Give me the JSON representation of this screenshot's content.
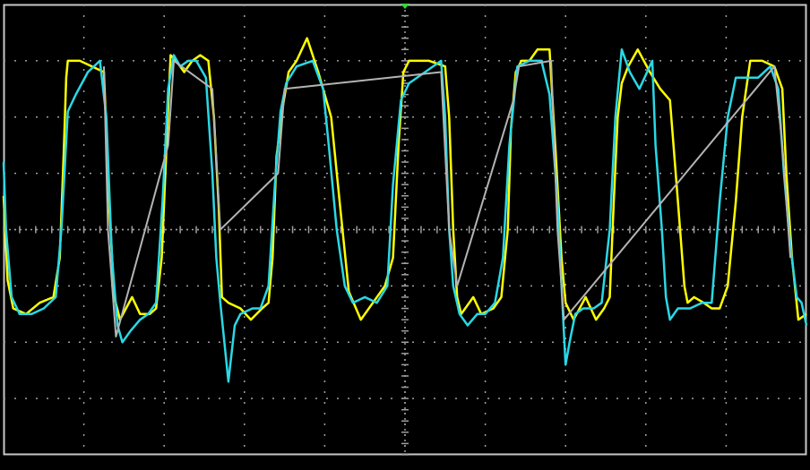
{
  "chart_data": {
    "type": "line",
    "title": "",
    "xlabel": "",
    "ylabel": "",
    "xlim": [
      0,
      10
    ],
    "ylim": [
      -4,
      4
    ],
    "grid": true,
    "grid_divisions": {
      "x": 10,
      "y": 8
    },
    "trigger_marker_x": 5,
    "colors": {
      "background": "#000000",
      "frame": "#c8c8c8",
      "grid": "#a0a0a0",
      "trigger": "#3ad63a"
    },
    "series": [
      {
        "color": "#ffff00",
        "points": [
          [
            0.0,
            0.6
          ],
          [
            0.05,
            -0.9
          ],
          [
            0.12,
            -1.4
          ],
          [
            0.28,
            -1.5
          ],
          [
            0.45,
            -1.3
          ],
          [
            0.62,
            -1.2
          ],
          [
            0.7,
            -0.5
          ],
          [
            0.75,
            1.4
          ],
          [
            0.78,
            2.7
          ],
          [
            0.8,
            3.0
          ],
          [
            0.95,
            3.0
          ],
          [
            1.25,
            2.8
          ],
          [
            1.32,
            0.3
          ],
          [
            1.38,
            -1.2
          ],
          [
            1.45,
            -1.6
          ],
          [
            1.6,
            -1.2
          ],
          [
            1.7,
            -1.5
          ],
          [
            1.82,
            -1.5
          ],
          [
            1.9,
            -1.4
          ],
          [
            1.97,
            -0.5
          ],
          [
            2.03,
            1.5
          ],
          [
            2.08,
            3.1
          ],
          [
            2.15,
            3.0
          ],
          [
            2.25,
            2.8
          ],
          [
            2.35,
            3.0
          ],
          [
            2.45,
            3.1
          ],
          [
            2.55,
            3.0
          ],
          [
            2.62,
            2.0
          ],
          [
            2.68,
            0.4
          ],
          [
            2.72,
            -1.2
          ],
          [
            2.8,
            -1.3
          ],
          [
            2.95,
            -1.4
          ],
          [
            3.08,
            -1.6
          ],
          [
            3.22,
            -1.4
          ],
          [
            3.3,
            -1.3
          ],
          [
            3.35,
            -0.5
          ],
          [
            3.4,
            1.3
          ],
          [
            3.48,
            2.2
          ],
          [
            3.55,
            2.8
          ],
          [
            3.65,
            3.0
          ],
          [
            3.78,
            3.4
          ],
          [
            3.92,
            2.8
          ],
          [
            4.08,
            2.0
          ],
          [
            4.2,
            0.3
          ],
          [
            4.3,
            -1.1
          ],
          [
            4.45,
            -1.6
          ],
          [
            4.6,
            -1.3
          ],
          [
            4.75,
            -1.0
          ],
          [
            4.85,
            -0.5
          ],
          [
            4.92,
            1.5
          ],
          [
            4.98,
            2.8
          ],
          [
            5.05,
            3.0
          ],
          [
            5.3,
            3.0
          ],
          [
            5.5,
            2.9
          ],
          [
            5.55,
            2.0
          ],
          [
            5.6,
            0.0
          ],
          [
            5.65,
            -1.2
          ],
          [
            5.7,
            -1.5
          ],
          [
            5.85,
            -1.2
          ],
          [
            5.95,
            -1.5
          ],
          [
            6.1,
            -1.4
          ],
          [
            6.2,
            -1.2
          ],
          [
            6.28,
            0.0
          ],
          [
            6.32,
            1.8
          ],
          [
            6.38,
            2.8
          ],
          [
            6.45,
            3.0
          ],
          [
            6.55,
            3.0
          ],
          [
            6.65,
            3.2
          ],
          [
            6.8,
            3.2
          ],
          [
            6.88,
            1.3
          ],
          [
            6.95,
            -0.5
          ],
          [
            7.0,
            -1.3
          ],
          [
            7.1,
            -1.6
          ],
          [
            7.25,
            -1.2
          ],
          [
            7.38,
            -1.6
          ],
          [
            7.48,
            -1.4
          ],
          [
            7.55,
            -1.2
          ],
          [
            7.6,
            0.5
          ],
          [
            7.65,
            2.0
          ],
          [
            7.7,
            2.6
          ],
          [
            7.78,
            2.9
          ],
          [
            7.9,
            3.2
          ],
          [
            8.05,
            2.8
          ],
          [
            8.18,
            2.5
          ],
          [
            8.3,
            2.3
          ],
          [
            8.4,
            0.5
          ],
          [
            8.48,
            -1.0
          ],
          [
            8.52,
            -1.3
          ],
          [
            8.6,
            -1.2
          ],
          [
            8.72,
            -1.3
          ],
          [
            8.82,
            -1.4
          ],
          [
            8.92,
            -1.4
          ],
          [
            9.02,
            -1.0
          ],
          [
            9.12,
            0.5
          ],
          [
            9.2,
            2.0
          ],
          [
            9.3,
            3.0
          ],
          [
            9.45,
            3.0
          ],
          [
            9.6,
            2.9
          ],
          [
            9.7,
            2.5
          ],
          [
            9.75,
            1.0
          ],
          [
            9.82,
            -0.5
          ],
          [
            9.9,
            -1.6
          ],
          [
            10.0,
            -1.5
          ]
        ]
      },
      {
        "color": "#2ad8e6",
        "points": [
          [
            0.0,
            1.2
          ],
          [
            0.03,
            0.0
          ],
          [
            0.1,
            -1.2
          ],
          [
            0.2,
            -1.5
          ],
          [
            0.35,
            -1.5
          ],
          [
            0.5,
            -1.4
          ],
          [
            0.65,
            -1.2
          ],
          [
            0.72,
            0.0
          ],
          [
            0.8,
            2.1
          ],
          [
            0.9,
            2.4
          ],
          [
            1.05,
            2.8
          ],
          [
            1.2,
            3.0
          ],
          [
            1.28,
            2.0
          ],
          [
            1.35,
            -0.5
          ],
          [
            1.42,
            -1.7
          ],
          [
            1.48,
            -2.0
          ],
          [
            1.58,
            -1.8
          ],
          [
            1.7,
            -1.6
          ],
          [
            1.8,
            -1.5
          ],
          [
            1.9,
            -1.3
          ],
          [
            1.98,
            0.5
          ],
          [
            2.05,
            2.5
          ],
          [
            2.12,
            3.1
          ],
          [
            2.2,
            2.9
          ],
          [
            2.3,
            3.0
          ],
          [
            2.4,
            3.0
          ],
          [
            2.52,
            2.7
          ],
          [
            2.6,
            1.0
          ],
          [
            2.65,
            -0.5
          ],
          [
            2.7,
            -1.3
          ],
          [
            2.8,
            -2.7
          ],
          [
            2.88,
            -1.7
          ],
          [
            2.95,
            -1.5
          ],
          [
            3.1,
            -1.4
          ],
          [
            3.2,
            -1.4
          ],
          [
            3.3,
            -1.0
          ],
          [
            3.38,
            0.8
          ],
          [
            3.45,
            2.1
          ],
          [
            3.52,
            2.6
          ],
          [
            3.65,
            2.9
          ],
          [
            3.85,
            3.0
          ],
          [
            3.98,
            2.5
          ],
          [
            4.05,
            1.5
          ],
          [
            4.15,
            0.0
          ],
          [
            4.25,
            -1.0
          ],
          [
            4.35,
            -1.3
          ],
          [
            4.5,
            -1.2
          ],
          [
            4.65,
            -1.3
          ],
          [
            4.78,
            -1.0
          ],
          [
            4.85,
            0.8
          ],
          [
            4.95,
            2.3
          ],
          [
            5.05,
            2.6
          ],
          [
            5.25,
            2.8
          ],
          [
            5.45,
            3.0
          ],
          [
            5.5,
            2.0
          ],
          [
            5.55,
            0.0
          ],
          [
            5.6,
            -1.0
          ],
          [
            5.68,
            -1.5
          ],
          [
            5.78,
            -1.7
          ],
          [
            5.9,
            -1.5
          ],
          [
            6.0,
            -1.5
          ],
          [
            6.12,
            -1.3
          ],
          [
            6.22,
            -0.5
          ],
          [
            6.3,
            1.5
          ],
          [
            6.4,
            2.9
          ],
          [
            6.55,
            3.0
          ],
          [
            6.7,
            3.0
          ],
          [
            6.8,
            2.4
          ],
          [
            6.9,
            0.5
          ],
          [
            6.95,
            -1.0
          ],
          [
            7.0,
            -2.4
          ],
          [
            7.05,
            -2.0
          ],
          [
            7.12,
            -1.5
          ],
          [
            7.22,
            -1.4
          ],
          [
            7.35,
            -1.4
          ],
          [
            7.45,
            -1.3
          ],
          [
            7.55,
            0.0
          ],
          [
            7.62,
            2.0
          ],
          [
            7.7,
            3.2
          ],
          [
            7.8,
            2.8
          ],
          [
            7.92,
            2.5
          ],
          [
            8.08,
            3.0
          ],
          [
            8.12,
            1.5
          ],
          [
            8.2,
            0.0
          ],
          [
            8.25,
            -1.2
          ],
          [
            8.3,
            -1.6
          ],
          [
            8.4,
            -1.4
          ],
          [
            8.55,
            -1.4
          ],
          [
            8.7,
            -1.3
          ],
          [
            8.82,
            -1.3
          ],
          [
            8.92,
            0.5
          ],
          [
            9.02,
            2.0
          ],
          [
            9.12,
            2.7
          ],
          [
            9.25,
            2.7
          ],
          [
            9.4,
            2.7
          ],
          [
            9.55,
            2.9
          ],
          [
            9.65,
            2.5
          ],
          [
            9.72,
            1.0
          ],
          [
            9.8,
            -0.3
          ],
          [
            9.88,
            -1.2
          ],
          [
            9.94,
            -1.3
          ],
          [
            10.0,
            -1.7
          ]
        ]
      },
      {
        "color": "#b4b4b4",
        "points": [
          [
            1.25,
            2.9
          ],
          [
            1.3,
            0.0
          ],
          [
            1.4,
            -1.9
          ],
          [
            2.05,
            1.5
          ],
          [
            2.12,
            3.0
          ],
          [
            2.6,
            2.5
          ],
          [
            2.7,
            0.0
          ],
          [
            3.42,
            1.0
          ],
          [
            3.5,
            2.5
          ],
          [
            5.45,
            2.8
          ],
          [
            5.55,
            0.0
          ],
          [
            5.65,
            -1.0
          ],
          [
            6.35,
            2.3
          ],
          [
            6.42,
            2.9
          ],
          [
            6.82,
            3.0
          ],
          [
            6.9,
            0.0
          ],
          [
            6.98,
            -1.6
          ],
          [
            9.6,
            2.9
          ],
          [
            9.7,
            1.5
          ],
          [
            9.8,
            -0.5
          ]
        ]
      }
    ]
  }
}
